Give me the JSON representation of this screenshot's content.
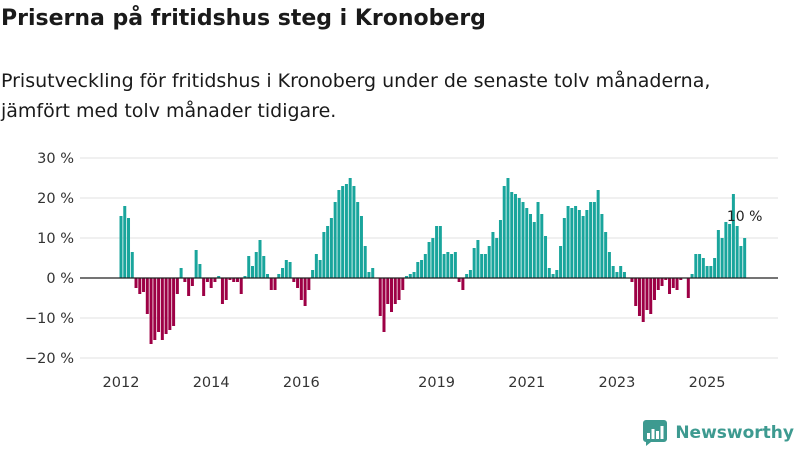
{
  "chart_data": {
    "type": "bar",
    "title": "Priserna på fritidshus steg i Kronoberg",
    "subtitle": "Prisutveckling för fritidshus i Kronoberg under de senaste tolv månaderna, jämfört med tolv månader tidigare.",
    "ylim": [
      -20,
      30
    ],
    "yticks": [
      30,
      20,
      10,
      0,
      -10,
      -20
    ],
    "ytick_labels": [
      "30 %",
      "20 %",
      "10 %",
      "0 %",
      "−10 %",
      "−20 %"
    ],
    "x_start": {
      "year": 2012,
      "month": 1
    },
    "x_step_months": 1,
    "xticks": [
      {
        "label": "2012",
        "year": 2012
      },
      {
        "label": "2014",
        "year": 2014
      },
      {
        "label": "2016",
        "year": 2016
      },
      {
        "label": "2019",
        "year": 2019
      },
      {
        "label": "2021",
        "year": 2021
      },
      {
        "label": "2023",
        "year": 2023
      },
      {
        "label": "2025",
        "year": 2025
      }
    ],
    "values": [
      15.5,
      18,
      15,
      6.5,
      -2.5,
      -4,
      -3.5,
      -9,
      -16.5,
      -15.5,
      -13.5,
      -15.5,
      -14,
      -13,
      -12,
      -4,
      2.5,
      -1,
      -4.5,
      -2,
      7,
      3.5,
      -4.5,
      -1,
      -2.5,
      -1,
      0.5,
      -6.5,
      -5.5,
      -0.5,
      -1,
      -1,
      -4,
      0.5,
      5.5,
      3,
      6.5,
      9.5,
      5.5,
      1,
      -3,
      -3,
      1,
      2.5,
      4.5,
      4,
      -1,
      -2.5,
      -5.5,
      -7,
      -3,
      2,
      6,
      4.5,
      11.5,
      13,
      15,
      19,
      22,
      23,
      23.5,
      25,
      23,
      19,
      15.5,
      8,
      1.5,
      2.5,
      0,
      -9.5,
      -13.5,
      -6.5,
      -8.5,
      -6.5,
      -5.5,
      -3,
      0.5,
      1,
      1.5,
      4,
      4.5,
      6,
      9,
      10,
      13,
      13,
      6,
      6.5,
      6,
      6.5,
      -1,
      -3,
      1,
      2,
      7.5,
      9.5,
      6,
      6,
      8,
      11.5,
      10,
      14.5,
      23,
      25,
      21.5,
      21,
      20,
      19,
      17.5,
      16,
      14,
      19,
      16,
      10.5,
      2.5,
      1,
      2,
      8,
      15,
      18,
      17.5,
      18,
      17,
      15.5,
      17,
      19,
      19,
      22,
      16,
      11.5,
      6.5,
      3,
      1.5,
      3,
      1.5,
      0,
      -1,
      -7,
      -9.5,
      -11,
      -8,
      -9,
      -5.5,
      -3,
      -2,
      -0.5,
      -4,
      -2.5,
      -3,
      -0.5,
      0,
      -5,
      1,
      6,
      6,
      5,
      3,
      3,
      5,
      12,
      10,
      14,
      13.5,
      21,
      13,
      8,
      10
    ],
    "annotation": {
      "label": "10 %",
      "index": 166
    },
    "grid": true,
    "colors": {
      "positive": "#19a59c",
      "negative": "#9d0045",
      "grid": "#e2e2e2",
      "zero_line": "#222222"
    }
  },
  "brand": {
    "name": "Newsworthy",
    "icon": "newsworthy-logo-icon",
    "color": "#3d9a90"
  }
}
